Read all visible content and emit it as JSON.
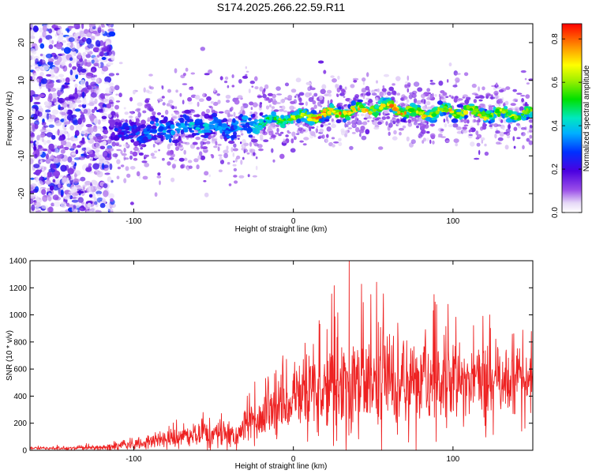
{
  "page_title": "S174.2025.266.22.59.R11",
  "chart_data": [
    {
      "type": "heatmap",
      "name": "spectrogram",
      "xlabel": "Height of straight line (km)",
      "ylabel": "Frequency (Hz)",
      "xlim": [
        -165,
        150
      ],
      "ylim": [
        -25,
        25
      ],
      "x_ticks": [
        -100,
        0,
        100
      ],
      "y_ticks": [
        -20,
        -10,
        0,
        10,
        20
      ],
      "colorbar": {
        "label": "Normalized spectral amplitude",
        "range": [
          0.0,
          0.87
        ],
        "ticks": [
          0.0,
          0.2,
          0.4,
          0.6,
          0.8
        ],
        "colormap": "rainbow (violet to red)"
      },
      "ridge": {
        "x": [
          -165,
          -120,
          -100,
          -80,
          -60,
          -40,
          -20,
          0,
          20,
          40,
          60,
          80,
          100,
          120,
          150
        ],
        "center_freq": [
          0,
          -3,
          -4,
          -3,
          -2,
          -3,
          -1,
          0,
          1,
          2,
          3,
          1,
          2,
          1,
          1
        ],
        "peak_amplitude": [
          0.2,
          0.25,
          0.35,
          0.4,
          0.45,
          0.4,
          0.5,
          0.65,
          0.8,
          0.75,
          0.8,
          0.7,
          0.75,
          0.7,
          0.6
        ]
      }
    },
    {
      "type": "line",
      "name": "snr",
      "xlabel": "Height of straight line (km)",
      "ylabel": "SNR (10 * v/v)",
      "xlim": [
        -165,
        150
      ],
      "ylim": [
        0,
        1400
      ],
      "x_ticks": [
        -100,
        0,
        100
      ],
      "y_ticks": [
        0,
        200,
        400,
        600,
        800,
        1000,
        1200,
        1400
      ],
      "color": "#ee2222",
      "envelope": {
        "x": [
          -165,
          -140,
          -120,
          -100,
          -80,
          -60,
          -45,
          -38,
          -30,
          -20,
          -10,
          0,
          10,
          20,
          30,
          40,
          50,
          60,
          70,
          80,
          90,
          100,
          110,
          120,
          130,
          140,
          150
        ],
        "mean": [
          15,
          15,
          20,
          40,
          80,
          120,
          110,
          100,
          170,
          260,
          320,
          360,
          420,
          460,
          480,
          500,
          520,
          520,
          500,
          510,
          520,
          540,
          520,
          510,
          500,
          520,
          540
        ],
        "peak": [
          35,
          40,
          60,
          100,
          200,
          280,
          320,
          260,
          450,
          600,
          700,
          800,
          950,
          1000,
          1410,
          1250,
          1280,
          1290,
          1200,
          1100,
          1250,
          1100,
          1000,
          1150,
          1000,
          1050,
          1050
        ]
      }
    }
  ]
}
